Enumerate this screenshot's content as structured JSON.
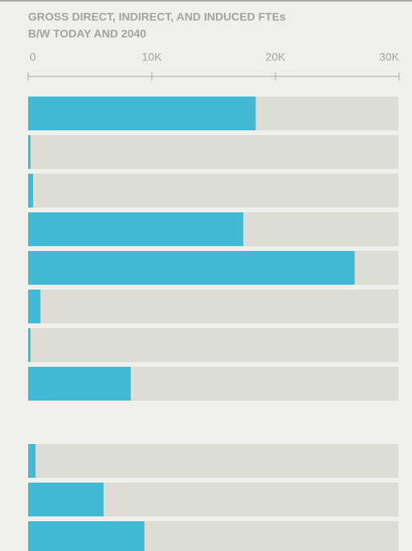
{
  "chart_data": {
    "type": "bar",
    "orientation": "horizontal",
    "title": [
      "GROSS DIRECT, INDIRECT, AND INDUCED FTEs",
      "B/W TODAY AND 2040"
    ],
    "categories": [
      null,
      null,
      null,
      null,
      null,
      null,
      null,
      null,
      null,
      null,
      null,
      null
    ],
    "values": [
      18400,
      200,
      400,
      17400,
      26400,
      1000,
      200,
      8300,
      null,
      600,
      6100,
      9400
    ],
    "color": "#42b9d4",
    "track_color": "#deddd5",
    "xlim": [
      0,
      30000
    ],
    "xticks": [
      0,
      {
        "value": 10000,
        "label": "10K"
      },
      {
        "value": 20000,
        "label": "20K"
      },
      {
        "value": 30000,
        "label": "30K"
      }
    ]
  }
}
